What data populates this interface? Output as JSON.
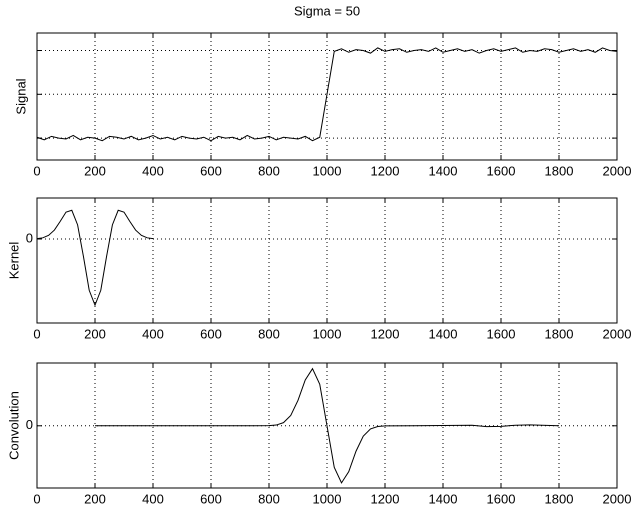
{
  "chart_data": [
    {
      "type": "line",
      "title": "Sigma = 50",
      "ylabel": "Signal",
      "color": "#000000",
      "x": [
        0,
        25,
        50,
        75,
        100,
        125,
        150,
        175,
        200,
        225,
        250,
        275,
        300,
        325,
        350,
        375,
        400,
        425,
        450,
        475,
        500,
        525,
        550,
        575,
        600,
        625,
        650,
        675,
        700,
        725,
        750,
        775,
        800,
        825,
        850,
        875,
        900,
        925,
        950,
        975,
        1000,
        1025,
        1050,
        1075,
        1100,
        1125,
        1150,
        1175,
        1200,
        1225,
        1250,
        1275,
        1300,
        1325,
        1350,
        1375,
        1400,
        1425,
        1450,
        1475,
        1500,
        1525,
        1550,
        1575,
        1600,
        1625,
        1650,
        1675,
        1700,
        1725,
        1750,
        1775,
        1800,
        1825,
        1850,
        1875,
        1900,
        1925,
        1950,
        1975,
        2000
      ],
      "values": [
        0.01,
        -0.02,
        0.02,
        0,
        -0.01,
        0.03,
        -0.02,
        0.01,
        0,
        -0.03,
        0.02,
        0.01,
        -0.01,
        0.02,
        -0.02,
        0,
        0.03,
        -0.01,
        0.01,
        -0.02,
        0.02,
        0,
        -0.01,
        0.01,
        -0.03,
        0.02,
        0,
        0.01,
        -0.02,
        0.03,
        -0.01,
        0,
        0.02,
        -0.02,
        0.01,
        0,
        -0.01,
        0.02,
        -0.03,
        0.01,
        0.5,
        0.99,
        1.02,
        0.98,
        1.01,
        1,
        0.97,
        1.03,
        0.99,
        1.01,
        1.02,
        0.98,
        1,
        1.01,
        0.99,
        1.03,
        0.98,
        1,
        1.02,
        0.99,
        1.01,
        0.97,
        1,
        1.02,
        0.99,
        1.01,
        1.03,
        0.98,
        1,
        0.99,
        1.02,
        1.01,
        0.98,
        1,
        1.02,
        0.99,
        1.01,
        0.98,
        1.03,
        1,
        0.99
      ],
      "xlim": [
        0,
        2000
      ],
      "xticks": [
        0,
        200,
        400,
        600,
        800,
        1000,
        1200,
        1400,
        1600,
        1800,
        2000
      ],
      "ylim": [
        -0.25,
        1.2
      ],
      "yticks": [
        0,
        0.5,
        1
      ],
      "ytick_labels": false,
      "grid": true
    },
    {
      "type": "line",
      "ylabel": "Kernel",
      "color": "#000000",
      "x": [
        0,
        20,
        40,
        60,
        80,
        100,
        120,
        140,
        160,
        180,
        200,
        220,
        240,
        260,
        280,
        300,
        320,
        340,
        360,
        380,
        400
      ],
      "values": [
        0.005,
        0.018,
        0.055,
        0.135,
        0.267,
        0.406,
        0.434,
        0.214,
        -0.261,
        -0.775,
        -1,
        -0.775,
        -0.261,
        0.214,
        0.434,
        0.406,
        0.267,
        0.135,
        0.055,
        0.018,
        0.005
      ],
      "xlim": [
        0,
        2000
      ],
      "xticks": [
        0,
        200,
        400,
        600,
        800,
        1000,
        1200,
        1400,
        1600,
        1800,
        2000
      ],
      "ylim": [
        -1.27,
        0.62
      ],
      "yticks": [
        0
      ],
      "ytick_labels": true,
      "grid": true
    },
    {
      "type": "line",
      "ylabel": "Convolution",
      "color": "#000000",
      "x": [
        200,
        400,
        600,
        800,
        825,
        850,
        875,
        900,
        925,
        950,
        975,
        1000,
        1025,
        1050,
        1075,
        1100,
        1125,
        1150,
        1175,
        1200,
        1300,
        1400,
        1500,
        1550,
        1600,
        1650,
        1700,
        1800
      ],
      "values": [
        0,
        0,
        0,
        0.002,
        0.013,
        0.055,
        0.181,
        0.446,
        0.803,
        1,
        0.728,
        0,
        -0.728,
        -1,
        -0.803,
        -0.446,
        -0.181,
        -0.055,
        -0.013,
        -0.002,
        0,
        0.005,
        0.01,
        -0.015,
        -0.01,
        0.01,
        0.015,
        0
      ],
      "xlim": [
        0,
        2000
      ],
      "xticks": [
        0,
        200,
        400,
        600,
        800,
        1000,
        1200,
        1400,
        1600,
        1800,
        2000
      ],
      "ylim": [
        -1.09,
        1.1
      ],
      "yticks": [
        0
      ],
      "ytick_labels": true,
      "grid": true
    }
  ]
}
